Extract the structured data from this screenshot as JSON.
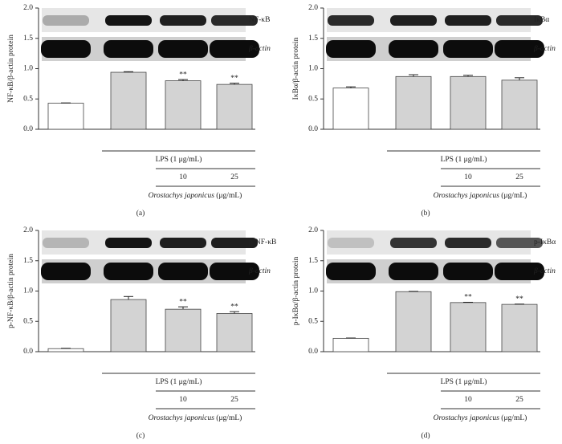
{
  "chart_data": [
    {
      "type": "bar",
      "panel_label": "(a)",
      "ylabel": "NF-κB/β-actin protein",
      "blot_target": "NF-κB",
      "blot_control": "β-actin",
      "values": [
        0.43,
        0.94,
        0.8,
        0.74
      ],
      "errors": [
        0.005,
        0.01,
        0.02,
        0.02
      ],
      "annotations": [
        null,
        null,
        "**",
        "**"
      ],
      "colors": [
        "#ffffff",
        "#d3d3d3",
        "#d3d3d3",
        "#d3d3d3"
      ],
      "ylim": [
        0,
        2
      ],
      "yticks": [
        {
          "value": 0,
          "label": "0.0"
        },
        {
          "value": 0.5,
          "label": "0.5"
        },
        {
          "value": 1,
          "label": "1.0"
        },
        {
          "value": 1.5,
          "label": "1.5"
        },
        {
          "value": 2,
          "label": "2.0"
        }
      ],
      "treatment": "LPS (1 μg/mL)",
      "doses": [
        "10",
        "25"
      ],
      "extract_name": "Orostachys japonicus",
      "extract_unit": "(μg/mL)"
    },
    {
      "type": "bar",
      "panel_label": "(b)",
      "ylabel": "IκBα/β-actin protein",
      "blot_target": "IκBα",
      "blot_control": "β-actin",
      "values": [
        0.68,
        0.87,
        0.87,
        0.81
      ],
      "errors": [
        0.02,
        0.03,
        0.02,
        0.04
      ],
      "annotations": [
        null,
        null,
        null,
        null
      ],
      "colors": [
        "#ffffff",
        "#d3d3d3",
        "#d3d3d3",
        "#d3d3d3"
      ],
      "ylim": [
        0,
        2
      ],
      "yticks": [
        {
          "value": 0,
          "label": "0.0"
        },
        {
          "value": 0.5,
          "label": "0.5"
        },
        {
          "value": 1,
          "label": "1.0"
        },
        {
          "value": 1.5,
          "label": "1.5"
        },
        {
          "value": 2,
          "label": "2.0"
        }
      ],
      "treatment": "LPS (1 μg/mL)",
      "doses": [
        "10",
        "25"
      ],
      "extract_name": "Orostachys japonicus",
      "extract_unit": "(μg/mL)"
    },
    {
      "type": "bar",
      "panel_label": "(c)",
      "ylabel": "p-NF-κB/β-actin protein",
      "blot_target": "p-NF-κB",
      "blot_control": "β-actin",
      "values": [
        0.05,
        0.86,
        0.7,
        0.63
      ],
      "errors": [
        0.005,
        0.05,
        0.04,
        0.03
      ],
      "annotations": [
        null,
        null,
        "**",
        "**"
      ],
      "colors": [
        "#ffffff",
        "#d3d3d3",
        "#d3d3d3",
        "#d3d3d3"
      ],
      "ylim": [
        0,
        2
      ],
      "yticks": [
        {
          "value": 0,
          "label": "0.0"
        },
        {
          "value": 0.5,
          "label": "0.5"
        },
        {
          "value": 1,
          "label": "1.0"
        },
        {
          "value": 1.5,
          "label": "1.5"
        },
        {
          "value": 2,
          "label": "2.0"
        }
      ],
      "treatment": "LPS (1 μg/mL)",
      "doses": [
        "10",
        "25"
      ],
      "extract_name": "Orostachys japonicus",
      "extract_unit": "(μg/mL)"
    },
    {
      "type": "bar",
      "panel_label": "(d)",
      "ylabel": "p-IκBα/β-actin protein",
      "blot_target": "p-IκBα",
      "blot_control": "β-actin",
      "values": [
        0.22,
        0.99,
        0.81,
        0.78
      ],
      "errors": [
        0.005,
        0.005,
        0.005,
        0.005
      ],
      "annotations": [
        null,
        null,
        "**",
        "**"
      ],
      "colors": [
        "#ffffff",
        "#d3d3d3",
        "#d3d3d3",
        "#d3d3d3"
      ],
      "ylim": [
        0,
        2
      ],
      "yticks": [
        {
          "value": 0,
          "label": "0.0"
        },
        {
          "value": 0.5,
          "label": "0.5"
        },
        {
          "value": 1,
          "label": "1.0"
        },
        {
          "value": 1.5,
          "label": "1.5"
        },
        {
          "value": 2,
          "label": "2.0"
        }
      ],
      "treatment": "LPS (1 μg/mL)",
      "doses": [
        "10",
        "25"
      ],
      "extract_name": "Orostachys japonicus",
      "extract_unit": "(μg/mL)"
    }
  ]
}
